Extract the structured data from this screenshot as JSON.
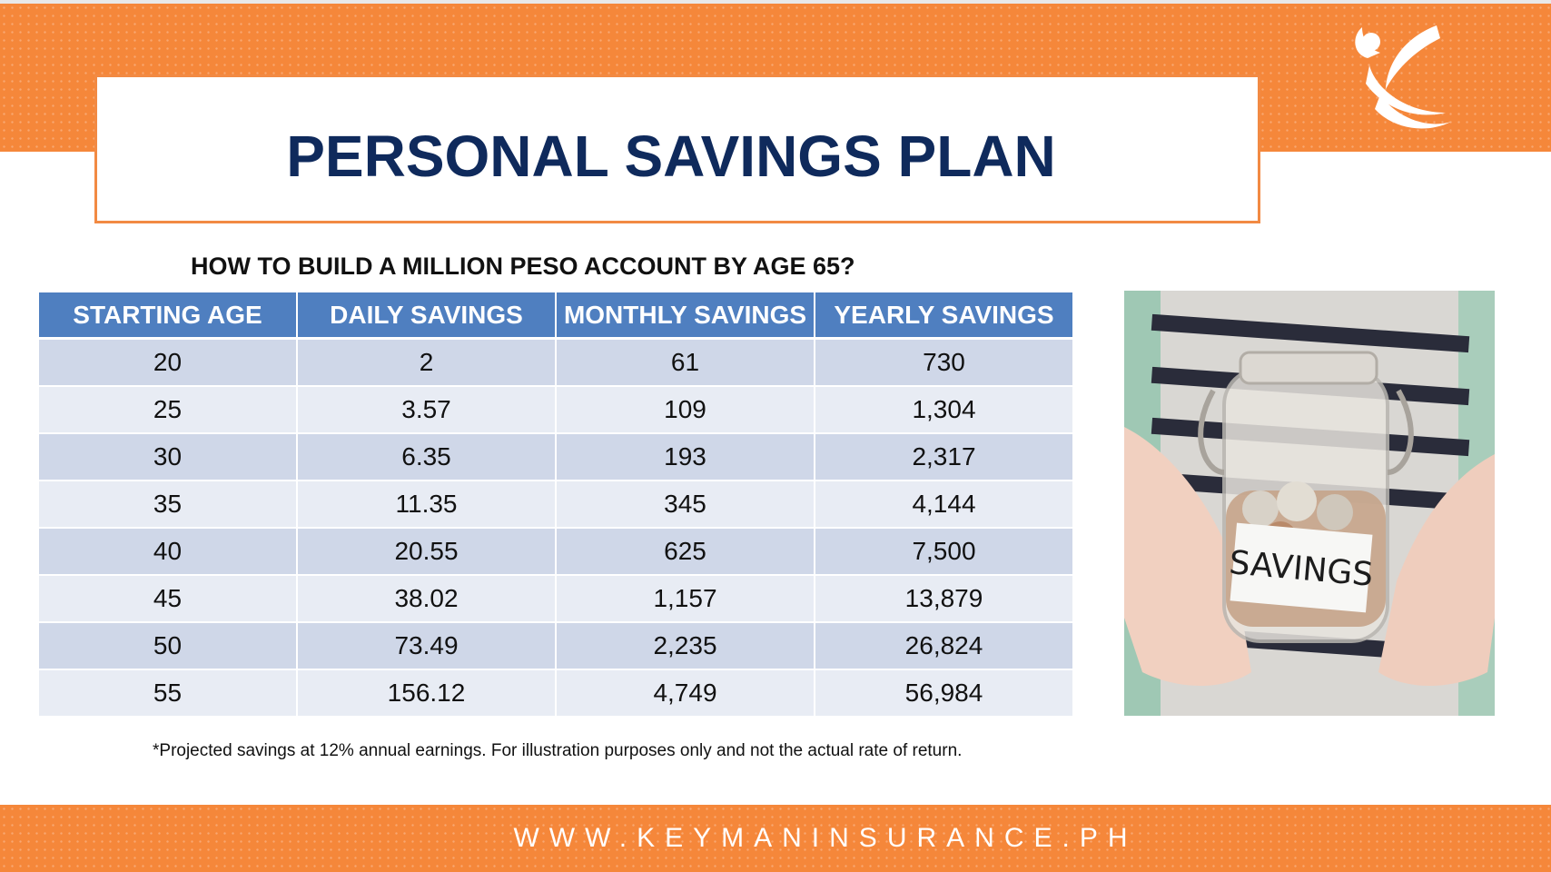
{
  "title": "PERSONAL SAVINGS PLAN",
  "subtitle": "HOW TO BUILD A MILLION PESO ACCOUNT BY AGE 65?",
  "table": {
    "headers": [
      "STARTING AGE",
      "DAILY SAVINGS",
      "MONTHLY SAVINGS",
      "YEARLY SAVINGS"
    ],
    "rows": [
      [
        "20",
        "2",
        "61",
        "730"
      ],
      [
        "25",
        "3.57",
        "109",
        "1,304"
      ],
      [
        "30",
        "6.35",
        "193",
        "2,317"
      ],
      [
        "35",
        "11.35",
        "345",
        "4,144"
      ],
      [
        "40",
        "20.55",
        "625",
        "7,500"
      ],
      [
        "45",
        "38.02",
        "1,157",
        "13,879"
      ],
      [
        "50",
        "73.49",
        "2,235",
        "26,824"
      ],
      [
        "55",
        "156.12",
        "4,749",
        "56,984"
      ]
    ]
  },
  "note": "*Projected savings at 12% annual earnings. For illustration purposes only and not the actual rate of return.",
  "photo": {
    "jar_label": "SAVINGS"
  },
  "footer": {
    "url": "WWW.KEYMANINSURANCE.PH"
  },
  "colors": {
    "orange": "#f5873a",
    "navy": "#0f2a5c",
    "header_blue": "#4f7fc0",
    "row_dark": "#cfd7e8",
    "row_light": "#e8ecf4"
  },
  "icons": {
    "logo": "keyman-figure-logo-icon"
  }
}
